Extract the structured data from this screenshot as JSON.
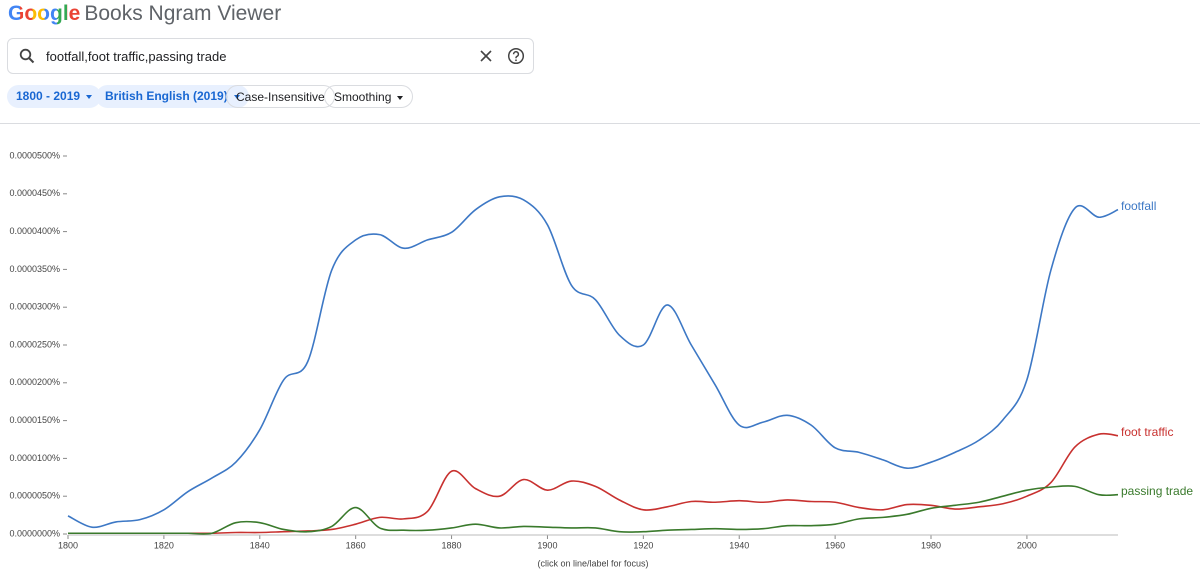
{
  "header": {
    "logo_brand": "Google",
    "logo_title": "Books Ngram Viewer"
  },
  "search": {
    "query": "footfall,foot traffic,passing trade"
  },
  "filters": [
    "1800 - 2019",
    "British English (2019)",
    "Case-Insensitive",
    "Smoothing"
  ],
  "chart_data": {
    "type": "line",
    "note": "(click on line/label for focus)",
    "x": [
      1800,
      1805,
      1810,
      1815,
      1820,
      1825,
      1830,
      1835,
      1840,
      1845,
      1850,
      1855,
      1860,
      1865,
      1870,
      1875,
      1880,
      1885,
      1890,
      1895,
      1900,
      1905,
      1910,
      1915,
      1920,
      1925,
      1930,
      1935,
      1940,
      1945,
      1950,
      1955,
      1960,
      1965,
      1970,
      1975,
      1980,
      1985,
      1990,
      1995,
      2000,
      2005,
      2010,
      2015,
      2019
    ],
    "xlim": [
      1800,
      2019
    ],
    "xticks": [
      1800,
      1820,
      1840,
      1860,
      1880,
      1900,
      1920,
      1940,
      1960,
      1980,
      2000
    ],
    "ylim": [
      0,
      5e-05
    ],
    "yticks": [
      {
        "value": 0,
        "label": "0.0000000%"
      },
      {
        "value": 5e-06,
        "label": "0.0000050%"
      },
      {
        "value": 1e-05,
        "label": "0.0000100%"
      },
      {
        "value": 1.5e-05,
        "label": "0.0000150%"
      },
      {
        "value": 2e-05,
        "label": "0.0000200%"
      },
      {
        "value": 2.5e-05,
        "label": "0.0000250%"
      },
      {
        "value": 3e-05,
        "label": "0.0000300%"
      },
      {
        "value": 3.5e-05,
        "label": "0.0000350%"
      },
      {
        "value": 4e-05,
        "label": "0.0000400%"
      },
      {
        "value": 4.5e-05,
        "label": "0.0000450%"
      },
      {
        "value": 5e-05,
        "label": "0.0000500%"
      }
    ],
    "series": [
      {
        "name": "footfall",
        "color": "#3d78c5",
        "values": [
          2.4e-06,
          9e-07,
          1.6e-06,
          1.9e-06,
          3.2e-06,
          5.6e-06,
          7.4e-06,
          9.5e-06,
          1.38e-05,
          2.04e-05,
          2.28e-05,
          3.49e-05,
          3.89e-05,
          3.96e-05,
          3.78e-05,
          3.89e-05,
          3.99e-05,
          4.29e-05,
          4.46e-05,
          4.42e-05,
          4.09e-05,
          3.29e-05,
          3.1e-05,
          2.63e-05,
          2.5e-05,
          3.03e-05,
          2.5e-05,
          1.97e-05,
          1.44e-05,
          1.48e-05,
          1.57e-05,
          1.44e-05,
          1.14e-05,
          1.08e-05,
          9.8e-06,
          8.7e-06,
          9.5e-06,
          1.08e-05,
          1.24e-05,
          1.51e-05,
          2.04e-05,
          3.49e-05,
          4.31e-05,
          4.19e-05,
          4.29e-05
        ]
      },
      {
        "name": "foot traffic",
        "color": "#c8312f",
        "values": [
          1e-07,
          1e-07,
          1e-07,
          1e-07,
          1e-07,
          1e-07,
          1e-07,
          2e-07,
          2e-07,
          3e-07,
          4e-07,
          6e-07,
          1.3e-06,
          2.2e-06,
          2e-06,
          3e-06,
          8.3e-06,
          6e-06,
          5e-06,
          7.2e-06,
          5.8e-06,
          7e-06,
          6.3e-06,
          4.5e-06,
          3.2e-06,
          3.6e-06,
          4.3e-06,
          4.2e-06,
          4.4e-06,
          4.2e-06,
          4.5e-06,
          4.3e-06,
          4.2e-06,
          3.5e-06,
          3.2e-06,
          3.9e-06,
          3.8e-06,
          3.3e-06,
          3.6e-06,
          4e-06,
          5e-06,
          6.8e-06,
          1.15e-05,
          1.32e-05,
          1.3e-05
        ]
      },
      {
        "name": "passing trade",
        "color": "#3a7a2c",
        "values": [
          1e-07,
          1e-07,
          1e-07,
          1e-07,
          1e-07,
          1e-07,
          1e-07,
          1.5e-06,
          1.5e-06,
          6e-07,
          3e-07,
          1e-06,
          3.5e-06,
          8e-07,
          5e-07,
          5e-07,
          8e-07,
          1.3e-06,
          8e-07,
          1e-06,
          9e-07,
          8e-07,
          8e-07,
          3e-07,
          3e-07,
          5e-07,
          6e-07,
          7e-07,
          6e-07,
          7e-07,
          1.1e-06,
          1.1e-06,
          1.3e-06,
          2e-06,
          2.2e-06,
          2.6e-06,
          3.4e-06,
          3.8e-06,
          4.2e-06,
          5e-06,
          5.8e-06,
          6.2e-06,
          6.3e-06,
          5.2e-06,
          5.2e-06
        ]
      }
    ]
  }
}
